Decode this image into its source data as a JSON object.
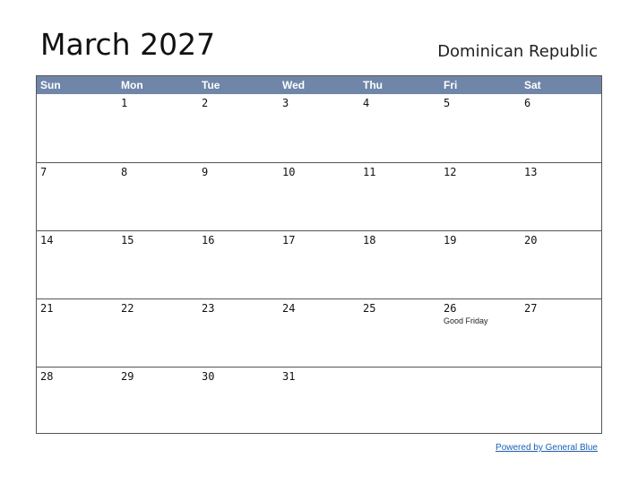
{
  "header": {
    "title": "March 2027",
    "country": "Dominican Republic"
  },
  "calendar": {
    "weekdays": [
      "Sun",
      "Mon",
      "Tue",
      "Wed",
      "Thu",
      "Fri",
      "Sat"
    ],
    "weeks": [
      [
        {
          "day": ""
        },
        {
          "day": "1"
        },
        {
          "day": "2"
        },
        {
          "day": "3"
        },
        {
          "day": "4"
        },
        {
          "day": "5"
        },
        {
          "day": "6"
        }
      ],
      [
        {
          "day": "7"
        },
        {
          "day": "8"
        },
        {
          "day": "9"
        },
        {
          "day": "10"
        },
        {
          "day": "11"
        },
        {
          "day": "12"
        },
        {
          "day": "13"
        }
      ],
      [
        {
          "day": "14"
        },
        {
          "day": "15"
        },
        {
          "day": "16"
        },
        {
          "day": "17"
        },
        {
          "day": "18"
        },
        {
          "day": "19"
        },
        {
          "day": "20"
        }
      ],
      [
        {
          "day": "21"
        },
        {
          "day": "22"
        },
        {
          "day": "23"
        },
        {
          "day": "24"
        },
        {
          "day": "25"
        },
        {
          "day": "26",
          "event": "Good Friday"
        },
        {
          "day": "27"
        }
      ],
      [
        {
          "day": "28"
        },
        {
          "day": "29"
        },
        {
          "day": "30"
        },
        {
          "day": "31"
        },
        {
          "day": ""
        },
        {
          "day": ""
        },
        {
          "day": ""
        }
      ]
    ]
  },
  "footer": {
    "link_text": "Powered by General Blue"
  },
  "colors": {
    "header_bg": "#6f86a8",
    "link": "#1a5fb4"
  }
}
